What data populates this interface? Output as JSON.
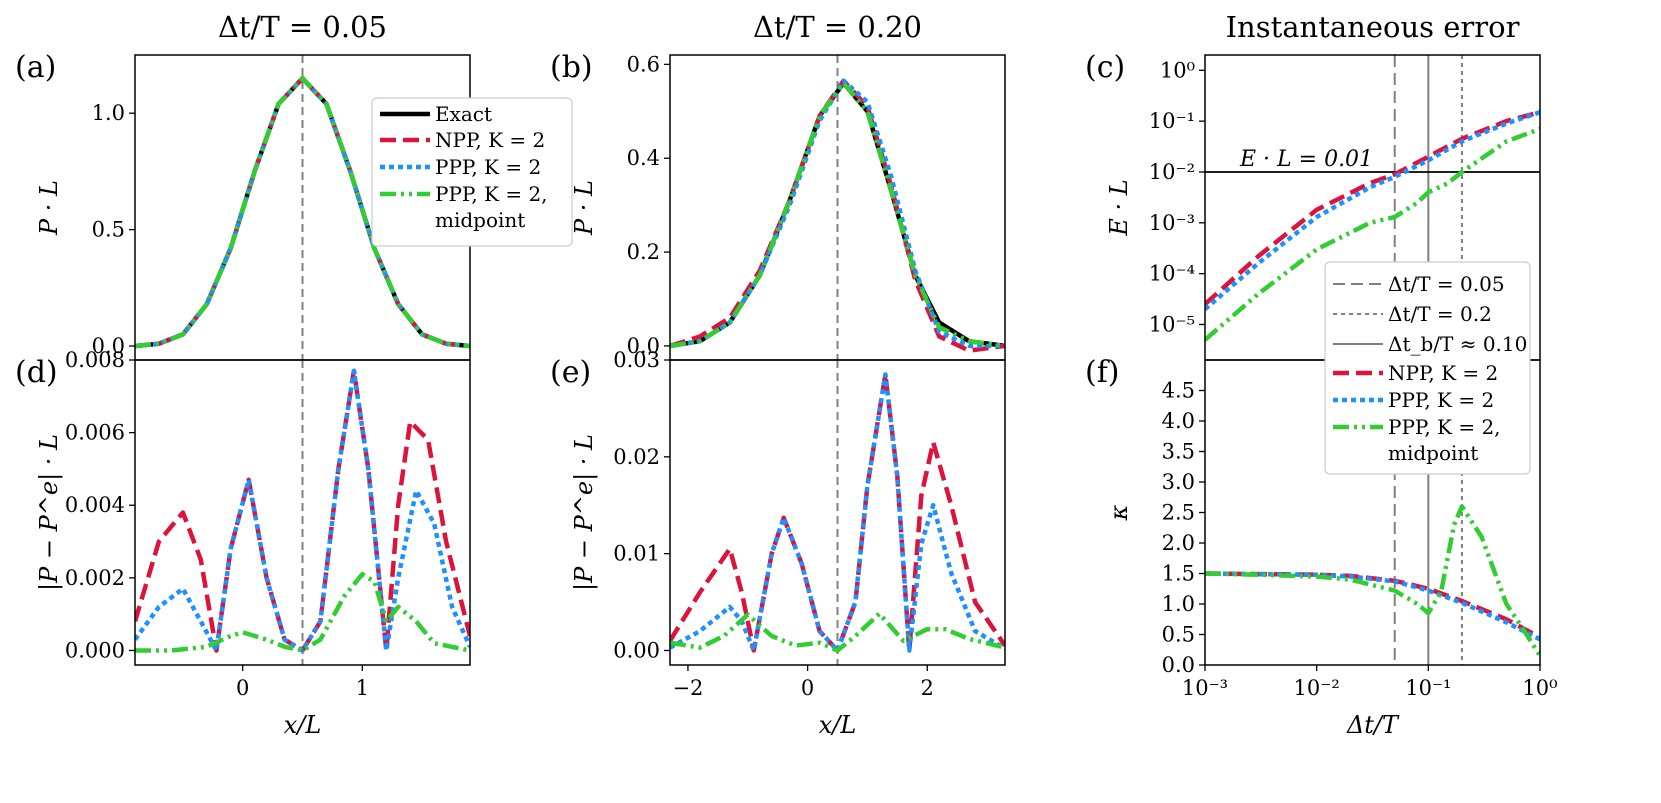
{
  "colors": {
    "exact": "#000000",
    "npp": "#DC143C",
    "ppp": "#1E90FF",
    "mid": "#32CD32",
    "ref": "#808080"
  },
  "chart_data": [
    {
      "id": "a",
      "type": "line",
      "panel_label": "(a)",
      "title": "Δt/T = 0.05",
      "ylabel": "P · L",
      "xlim": [
        -0.9,
        1.9
      ],
      "ylim": [
        -0.06,
        1.25
      ],
      "yticks": [
        0.0,
        0.5,
        1.0
      ],
      "ytick_labels": [
        "0.0",
        "0.5",
        "1.0"
      ],
      "vline": 0.5,
      "legend": {
        "position": "upper-right",
        "entries": [
          "Exact",
          "NPP, K = 2",
          "PPP, K = 2",
          "PPP, K = 2,",
          "midpoint"
        ]
      },
      "series": [
        {
          "name": "Exact",
          "style": "exact",
          "x": [
            -0.9,
            -0.7,
            -0.5,
            -0.3,
            -0.1,
            0.1,
            0.3,
            0.5,
            0.7,
            0.9,
            1.1,
            1.3,
            1.5,
            1.7,
            1.9
          ],
          "y": [
            0.0,
            0.01,
            0.05,
            0.18,
            0.42,
            0.75,
            1.04,
            1.15,
            1.04,
            0.75,
            0.42,
            0.18,
            0.05,
            0.01,
            0.0
          ]
        },
        {
          "name": "NPP, K = 2",
          "style": "npp",
          "x": [
            -0.9,
            -0.7,
            -0.5,
            -0.3,
            -0.1,
            0.1,
            0.3,
            0.5,
            0.7,
            0.9,
            1.1,
            1.3,
            1.5,
            1.7,
            1.9
          ],
          "y": [
            0.0,
            0.01,
            0.05,
            0.18,
            0.42,
            0.75,
            1.04,
            1.15,
            1.04,
            0.75,
            0.42,
            0.18,
            0.05,
            0.01,
            0.0
          ]
        },
        {
          "name": "PPP, K = 2",
          "style": "ppp",
          "x": [
            -0.9,
            -0.7,
            -0.5,
            -0.3,
            -0.1,
            0.1,
            0.3,
            0.5,
            0.7,
            0.9,
            1.1,
            1.3,
            1.5,
            1.7,
            1.9
          ],
          "y": [
            0.0,
            0.01,
            0.05,
            0.18,
            0.42,
            0.75,
            1.04,
            1.15,
            1.04,
            0.75,
            0.42,
            0.18,
            0.05,
            0.01,
            0.0
          ]
        },
        {
          "name": "PPP, K = 2, midpoint",
          "style": "mid",
          "x": [
            -0.9,
            -0.7,
            -0.5,
            -0.3,
            -0.1,
            0.1,
            0.3,
            0.5,
            0.7,
            0.9,
            1.1,
            1.3,
            1.5,
            1.7,
            1.9
          ],
          "y": [
            0.0,
            0.01,
            0.05,
            0.18,
            0.42,
            0.75,
            1.04,
            1.15,
            1.04,
            0.75,
            0.42,
            0.18,
            0.05,
            0.01,
            0.0
          ]
        }
      ]
    },
    {
      "id": "b",
      "type": "line",
      "panel_label": "(b)",
      "title": "Δt/T = 0.20",
      "ylabel": "P · L",
      "xlim": [
        -2.3,
        3.3
      ],
      "ylim": [
        -0.03,
        0.62
      ],
      "yticks": [
        0.0,
        0.2,
        0.4,
        0.6
      ],
      "ytick_labels": [
        "0.0",
        "0.2",
        "0.4",
        "0.6"
      ],
      "vline": 0.5,
      "series": [
        {
          "name": "Exact",
          "style": "exact",
          "x": [
            -2.3,
            -1.8,
            -1.3,
            -0.8,
            -0.3,
            0.2,
            0.6,
            1.0,
            1.4,
            1.8,
            2.2,
            2.7,
            3.3
          ],
          "y": [
            0.0,
            0.01,
            0.05,
            0.15,
            0.31,
            0.49,
            0.56,
            0.5,
            0.33,
            0.15,
            0.05,
            0.01,
            0.0
          ]
        },
        {
          "name": "NPP, K = 2",
          "style": "npp",
          "x": [
            -2.3,
            -1.8,
            -1.3,
            -0.8,
            -0.3,
            0.2,
            0.6,
            1.0,
            1.4,
            1.8,
            2.2,
            2.7,
            3.3
          ],
          "y": [
            0.0,
            0.02,
            0.06,
            0.16,
            0.31,
            0.49,
            0.565,
            0.51,
            0.34,
            0.14,
            0.02,
            -0.01,
            0.0
          ]
        },
        {
          "name": "PPP, K = 2",
          "style": "ppp",
          "x": [
            -2.3,
            -1.8,
            -1.3,
            -0.8,
            -0.3,
            0.2,
            0.6,
            1.0,
            1.4,
            1.8,
            2.2,
            2.7,
            3.3
          ],
          "y": [
            0.0,
            0.01,
            0.05,
            0.15,
            0.3,
            0.48,
            0.565,
            0.52,
            0.36,
            0.16,
            0.03,
            0.0,
            0.0
          ]
        },
        {
          "name": "PPP, K = 2, midpoint",
          "style": "mid",
          "x": [
            -2.3,
            -1.8,
            -1.3,
            -0.8,
            -0.3,
            0.2,
            0.6,
            1.0,
            1.4,
            1.8,
            2.2,
            2.7,
            3.3
          ],
          "y": [
            0.0,
            0.01,
            0.05,
            0.15,
            0.31,
            0.49,
            0.56,
            0.5,
            0.33,
            0.15,
            0.04,
            0.01,
            0.0
          ]
        }
      ]
    },
    {
      "id": "c",
      "type": "line",
      "panel_label": "(c)",
      "title": "Instantaneous error",
      "ylabel": "E · L",
      "xscale": "log",
      "yscale": "log",
      "xlim": [
        0.001,
        1
      ],
      "ylim": [
        2e-06,
        2
      ],
      "ytick_labels": [
        "10⁻⁵",
        "10⁻⁴",
        "10⁻³",
        "10⁻²",
        "10⁻¹",
        "10⁰"
      ],
      "yticks": [
        1e-05,
        0.0001,
        0.001,
        0.01,
        0.1,
        1
      ],
      "hline": 0.01,
      "annotation": "E · L = 0.01",
      "vlines": [
        {
          "x": 0.05,
          "style": "dashed",
          "label": "Δt/T = 0.05"
        },
        {
          "x": 0.2,
          "style": "dotted",
          "label": "Δt/T = 0.2"
        },
        {
          "x": 0.1,
          "style": "solid",
          "label": "Δt_b/T ≈ 0.10"
        }
      ],
      "legend": {
        "position": "lower-right",
        "entries": [
          "Δt/T = 0.05",
          "Δt/T = 0.2",
          "Δt_b/T ≈ 0.10",
          "NPP, K = 2",
          "PPP, K = 2",
          "PPP, K = 2,",
          "midpoint"
        ]
      },
      "series": [
        {
          "name": "NPP, K = 2",
          "style": "npp",
          "x": [
            0.001,
            0.003,
            0.01,
            0.03,
            0.05,
            0.1,
            0.2,
            0.5,
            1
          ],
          "y": [
            2.5e-05,
            0.00022,
            0.0018,
            0.006,
            0.009,
            0.02,
            0.045,
            0.1,
            0.15
          ]
        },
        {
          "name": "PPP, K = 2",
          "style": "ppp",
          "x": [
            0.001,
            0.003,
            0.01,
            0.03,
            0.05,
            0.1,
            0.2,
            0.5,
            1
          ],
          "y": [
            2e-05,
            0.00016,
            0.0013,
            0.005,
            0.008,
            0.017,
            0.04,
            0.09,
            0.15
          ]
        },
        {
          "name": "PPP, K = 2, midpoint",
          "style": "mid",
          "x": [
            0.001,
            0.003,
            0.01,
            0.03,
            0.05,
            0.08,
            0.1,
            0.15,
            0.2,
            0.5,
            1
          ],
          "y": [
            5e-06,
            4e-05,
            0.0003,
            0.001,
            0.0013,
            0.0025,
            0.004,
            0.006,
            0.01,
            0.04,
            0.07
          ]
        }
      ]
    },
    {
      "id": "d",
      "type": "line",
      "panel_label": "(d)",
      "ylabel": "|P − P^e| · L",
      "xlabel": "x/L",
      "xlim": [
        -0.9,
        1.9
      ],
      "ylim": [
        -0.0004,
        0.008
      ],
      "yticks": [
        0,
        0.002,
        0.004,
        0.006,
        0.008
      ],
      "ytick_labels": [
        "0.000",
        "0.002",
        "0.004",
        "0.006",
        "0.008"
      ],
      "xticks": [
        0,
        1
      ],
      "xtick_labels": [
        "0",
        "1"
      ],
      "vline": 0.5,
      "series": [
        {
          "name": "NPP, K = 2",
          "style": "npp",
          "x": [
            -0.9,
            -0.7,
            -0.5,
            -0.35,
            -0.22,
            -0.1,
            0.05,
            0.2,
            0.35,
            0.5,
            0.65,
            0.8,
            0.93,
            1.05,
            1.2,
            1.3,
            1.4,
            1.55,
            1.7,
            1.9
          ],
          "y": [
            0.0008,
            0.003,
            0.0038,
            0.0025,
            0,
            0.0028,
            0.0047,
            0.002,
            0.0003,
            0,
            0.0008,
            0.005,
            0.0077,
            0.005,
            0,
            0.004,
            0.0063,
            0.0058,
            0.003,
            0.0004
          ]
        },
        {
          "name": "PPP, K = 2",
          "style": "ppp",
          "x": [
            -0.9,
            -0.7,
            -0.5,
            -0.35,
            -0.22,
            -0.1,
            0.05,
            0.2,
            0.35,
            0.5,
            0.65,
            0.8,
            0.93,
            1.05,
            1.2,
            1.3,
            1.45,
            1.6,
            1.75,
            1.9
          ],
          "y": [
            0.0003,
            0.0012,
            0.0017,
            0.0008,
            0,
            0.0028,
            0.0047,
            0.002,
            0.0003,
            0,
            0.0008,
            0.005,
            0.0077,
            0.005,
            0,
            0.002,
            0.0044,
            0.0035,
            0.0012,
            0.0001
          ]
        },
        {
          "name": "PPP, K = 2, midpoint",
          "style": "mid",
          "x": [
            -0.9,
            -0.6,
            -0.3,
            -0.1,
            0.0,
            0.2,
            0.35,
            0.5,
            0.65,
            0.85,
            1.0,
            1.1,
            1.2,
            1.3,
            1.45,
            1.6,
            1.9
          ],
          "y": [
            0,
            0,
            0.0001,
            0.0004,
            0.0005,
            0.0003,
            0.0001,
            0,
            0.0003,
            0.0015,
            0.0021,
            0.0019,
            0.0008,
            0.0012,
            0.0008,
            0.0002,
            0
          ]
        }
      ]
    },
    {
      "id": "e",
      "type": "line",
      "panel_label": "(e)",
      "ylabel": "|P − P^e| · L",
      "xlabel": "x/L",
      "xlim": [
        -2.3,
        3.3
      ],
      "ylim": [
        -0.0015,
        0.03
      ],
      "yticks": [
        0,
        0.01,
        0.02,
        0.03
      ],
      "ytick_labels": [
        "0.00",
        "0.01",
        "0.02",
        "0.03"
      ],
      "xticks": [
        -2,
        0,
        2
      ],
      "xtick_labels": [
        "−2",
        "0",
        "2"
      ],
      "vline": 0.5,
      "series": [
        {
          "name": "NPP, K = 2",
          "style": "npp",
          "x": [
            -2.3,
            -1.8,
            -1.3,
            -1.1,
            -0.9,
            -0.6,
            -0.4,
            -0.1,
            0.2,
            0.5,
            0.8,
            1.0,
            1.3,
            1.5,
            1.7,
            1.9,
            2.1,
            2.4,
            2.8,
            3.3
          ],
          "y": [
            0.001,
            0.006,
            0.0105,
            0.006,
            0,
            0.01,
            0.0137,
            0.009,
            0.002,
            0,
            0.005,
            0.017,
            0.0285,
            0.018,
            0,
            0.016,
            0.0215,
            0.015,
            0.005,
            0.0005
          ]
        },
        {
          "name": "PPP, K = 2",
          "style": "ppp",
          "x": [
            -2.3,
            -1.8,
            -1.3,
            -1.1,
            -0.9,
            -0.6,
            -0.4,
            -0.1,
            0.2,
            0.5,
            0.8,
            1.0,
            1.3,
            1.5,
            1.7,
            1.9,
            2.1,
            2.4,
            2.8,
            3.3
          ],
          "y": [
            0.0003,
            0.002,
            0.0045,
            0.003,
            0,
            0.01,
            0.0137,
            0.009,
            0.002,
            0,
            0.005,
            0.017,
            0.0285,
            0.018,
            0,
            0.011,
            0.015,
            0.008,
            0.002,
            0.0002
          ]
        },
        {
          "name": "PPP, K = 2, midpoint",
          "style": "mid",
          "x": [
            -2.3,
            -1.8,
            -1.4,
            -1.0,
            -0.6,
            -0.2,
            0.2,
            0.5,
            0.8,
            1.2,
            1.6,
            2.0,
            2.3,
            2.7,
            3.3
          ],
          "y": [
            0.0008,
            0.0003,
            0.0015,
            0.0037,
            0.0015,
            0.0005,
            0.0008,
            0,
            0.0015,
            0.0038,
            0.001,
            0.0022,
            0.0022,
            0.0012,
            0.0003
          ]
        }
      ]
    },
    {
      "id": "f",
      "type": "line",
      "panel_label": "(f)",
      "ylabel": "κ",
      "xlabel": "Δt/T",
      "xscale": "log",
      "xlim": [
        0.001,
        1
      ],
      "ylim": [
        0,
        5
      ],
      "yticks": [
        0,
        0.5,
        1,
        1.5,
        2,
        2.5,
        3,
        3.5,
        4,
        4.5
      ],
      "ytick_labels": [
        "0.0",
        "0.5",
        "1.0",
        "1.5",
        "2.0",
        "2.5",
        "3.0",
        "3.5",
        "4.0",
        "4.5"
      ],
      "xticks": [
        0.001,
        0.01,
        0.1,
        1
      ],
      "xtick_labels": [
        "10⁻³",
        "10⁻²",
        "10⁻¹",
        "10⁰"
      ],
      "vlines": [
        {
          "x": 0.05,
          "style": "dashed"
        },
        {
          "x": 0.2,
          "style": "dotted"
        },
        {
          "x": 0.1,
          "style": "solid"
        }
      ],
      "series": [
        {
          "name": "NPP, K = 2",
          "style": "npp",
          "x": [
            0.001,
            0.003,
            0.01,
            0.02,
            0.05,
            0.1,
            0.2,
            0.5,
            1
          ],
          "y": [
            1.5,
            1.49,
            1.48,
            1.46,
            1.38,
            1.25,
            1.05,
            0.75,
            0.45
          ]
        },
        {
          "name": "PPP, K = 2",
          "style": "ppp",
          "x": [
            0.001,
            0.003,
            0.01,
            0.02,
            0.05,
            0.1,
            0.2,
            0.5,
            1
          ],
          "y": [
            1.5,
            1.49,
            1.48,
            1.45,
            1.37,
            1.22,
            1.02,
            0.7,
            0.42
          ]
        },
        {
          "name": "PPP, K = 2, midpoint",
          "style": "mid",
          "x": [
            0.001,
            0.003,
            0.01,
            0.02,
            0.05,
            0.08,
            0.1,
            0.13,
            0.17,
            0.2,
            0.3,
            0.5,
            0.7,
            1
          ],
          "y": [
            1.5,
            1.48,
            1.45,
            1.4,
            1.22,
            1.0,
            0.85,
            1.2,
            2.3,
            2.6,
            2.1,
            1.0,
            0.6,
            0.15
          ]
        }
      ]
    }
  ]
}
